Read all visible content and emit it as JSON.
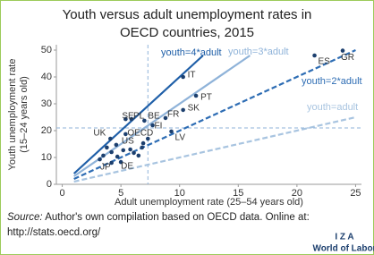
{
  "chart_data": {
    "type": "scatter",
    "title": [
      "Youth versus adult unemployment rates in",
      "OECD countries, 2015"
    ],
    "x_label": "Adult unemployment rate (25–54 years old)",
    "y_label": [
      "Youth unemployment rate",
      "(15–24 years old)"
    ],
    "xlim": [
      -0.5,
      25.5
    ],
    "xticks": [
      0,
      5,
      10,
      15,
      20,
      25
    ],
    "ylim": [
      0,
      52
    ],
    "yticks": [
      0,
      10,
      20,
      30,
      40,
      50
    ],
    "point_color": "#1c3f6e",
    "x": [
      23.9,
      21.5,
      10.3,
      11.4,
      10.3,
      8.8,
      9.3,
      7.0,
      7.7,
      5.9,
      5.4,
      4.1,
      5.4,
      4.6,
      4.2,
      5.0,
      3.8,
      4.2,
      4.7,
      5.2,
      5.8,
      6.1,
      6.5,
      6.9,
      7.3,
      3.5,
      3.2,
      6.8
    ],
    "values": [
      49.8,
      48.0,
      40.0,
      33.0,
      27.7,
      24.7,
      19.7,
      23.7,
      22.0,
      24.3,
      24.3,
      17.0,
      18.7,
      14.7,
      8.0,
      8.3,
      13.7,
      12.0,
      10.3,
      12.7,
      13.0,
      11.7,
      10.7,
      15.3,
      17.0,
      10.7,
      9.3,
      13.7
    ],
    "point_labels": [
      "GR",
      "ES",
      "IT",
      "PT",
      "SK",
      "FR",
      "LV",
      "BE",
      "FI",
      "PL",
      "SE",
      "UK",
      "OECD",
      "US",
      "JP",
      "DE",
      null,
      null,
      null,
      null,
      null,
      null,
      null,
      null,
      null,
      null,
      null,
      null
    ],
    "reference_lines": [
      {
        "name": "youth=4*adult",
        "color": "#1f5fa8",
        "dashed": false,
        "x": [
          1,
          12
        ],
        "values": [
          4,
          48
        ]
      },
      {
        "name": "youth=3*adult",
        "color": "#8fb3d9",
        "dashed": false,
        "x": [
          1,
          16
        ],
        "values": [
          3,
          48
        ]
      },
      {
        "name": "youth=2*adult",
        "color": "#2e6db4",
        "dashed": true,
        "x": [
          1,
          25
        ],
        "values": [
          2,
          50
        ]
      },
      {
        "name": "youth=adult",
        "color": "#a8c4e0",
        "dashed": true,
        "x": [
          1,
          25
        ],
        "values": [
          1,
          25
        ]
      }
    ],
    "average_x": 7.3,
    "average_y": 21,
    "average_color": "#8fb3d9"
  },
  "source": {
    "label": "Source:",
    "text": "Author's own compilation based on OECD data. Online at:",
    "url": "http://stats.oecd.org/"
  },
  "logo": {
    "brand": "I Z A",
    "tagline": "World of Labor"
  }
}
